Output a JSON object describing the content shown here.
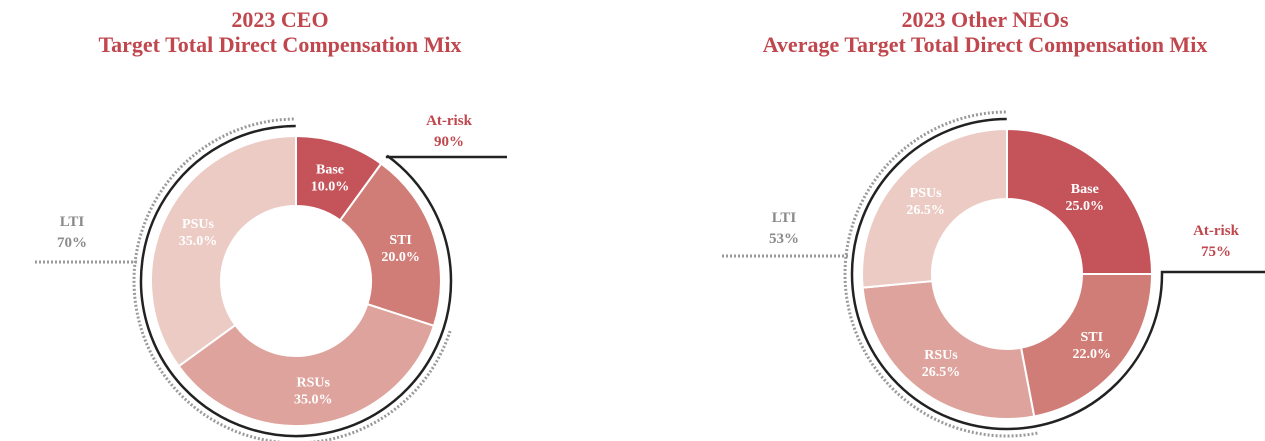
{
  "colors": {
    "title": "#c0474e",
    "base": "#c4545a",
    "sti": "#d17d77",
    "rsus": "#dea39c",
    "psus": "#ebcbc4",
    "atrisk_text": "#c0474e",
    "lti_text": "#8a8a8a",
    "bracket": "#222222",
    "dotted": "#9a9a9a"
  },
  "chart_data": [
    {
      "type": "pie",
      "title_line1": "2023 CEO",
      "title_line2": "Target Total Direct Compensation Mix",
      "slices": [
        {
          "name": "Base",
          "value": 10.0,
          "label": "10.0%",
          "color_key": "base"
        },
        {
          "name": "STI",
          "value": 20.0,
          "label": "20.0%",
          "color_key": "sti"
        },
        {
          "name": "RSUs",
          "value": 35.0,
          "label": "35.0%",
          "color_key": "rsus"
        },
        {
          "name": "PSUs",
          "value": 35.0,
          "label": "35.0%",
          "color_key": "psus"
        }
      ],
      "at_risk": {
        "title": "At-risk",
        "value": "90%",
        "fraction": 0.9
      },
      "lti": {
        "title": "LTI",
        "value": "70%",
        "fraction": 0.7
      }
    },
    {
      "type": "pie",
      "title_line1": "2023 Other NEOs",
      "title_line2": "Average Target Total Direct Compensation Mix",
      "slices": [
        {
          "name": "Base",
          "value": 25.0,
          "label": "25.0%",
          "color_key": "base"
        },
        {
          "name": "STI",
          "value": 22.0,
          "label": "22.0%",
          "color_key": "sti"
        },
        {
          "name": "RSUs",
          "value": 26.5,
          "label": "26.5%",
          "color_key": "rsus"
        },
        {
          "name": "PSUs",
          "value": 26.5,
          "label": "26.5%",
          "color_key": "psus"
        }
      ],
      "at_risk": {
        "title": "At-risk",
        "value": "75%",
        "fraction": 0.75
      },
      "lti": {
        "title": "LTI",
        "value": "53%",
        "fraction": 0.53
      }
    }
  ]
}
